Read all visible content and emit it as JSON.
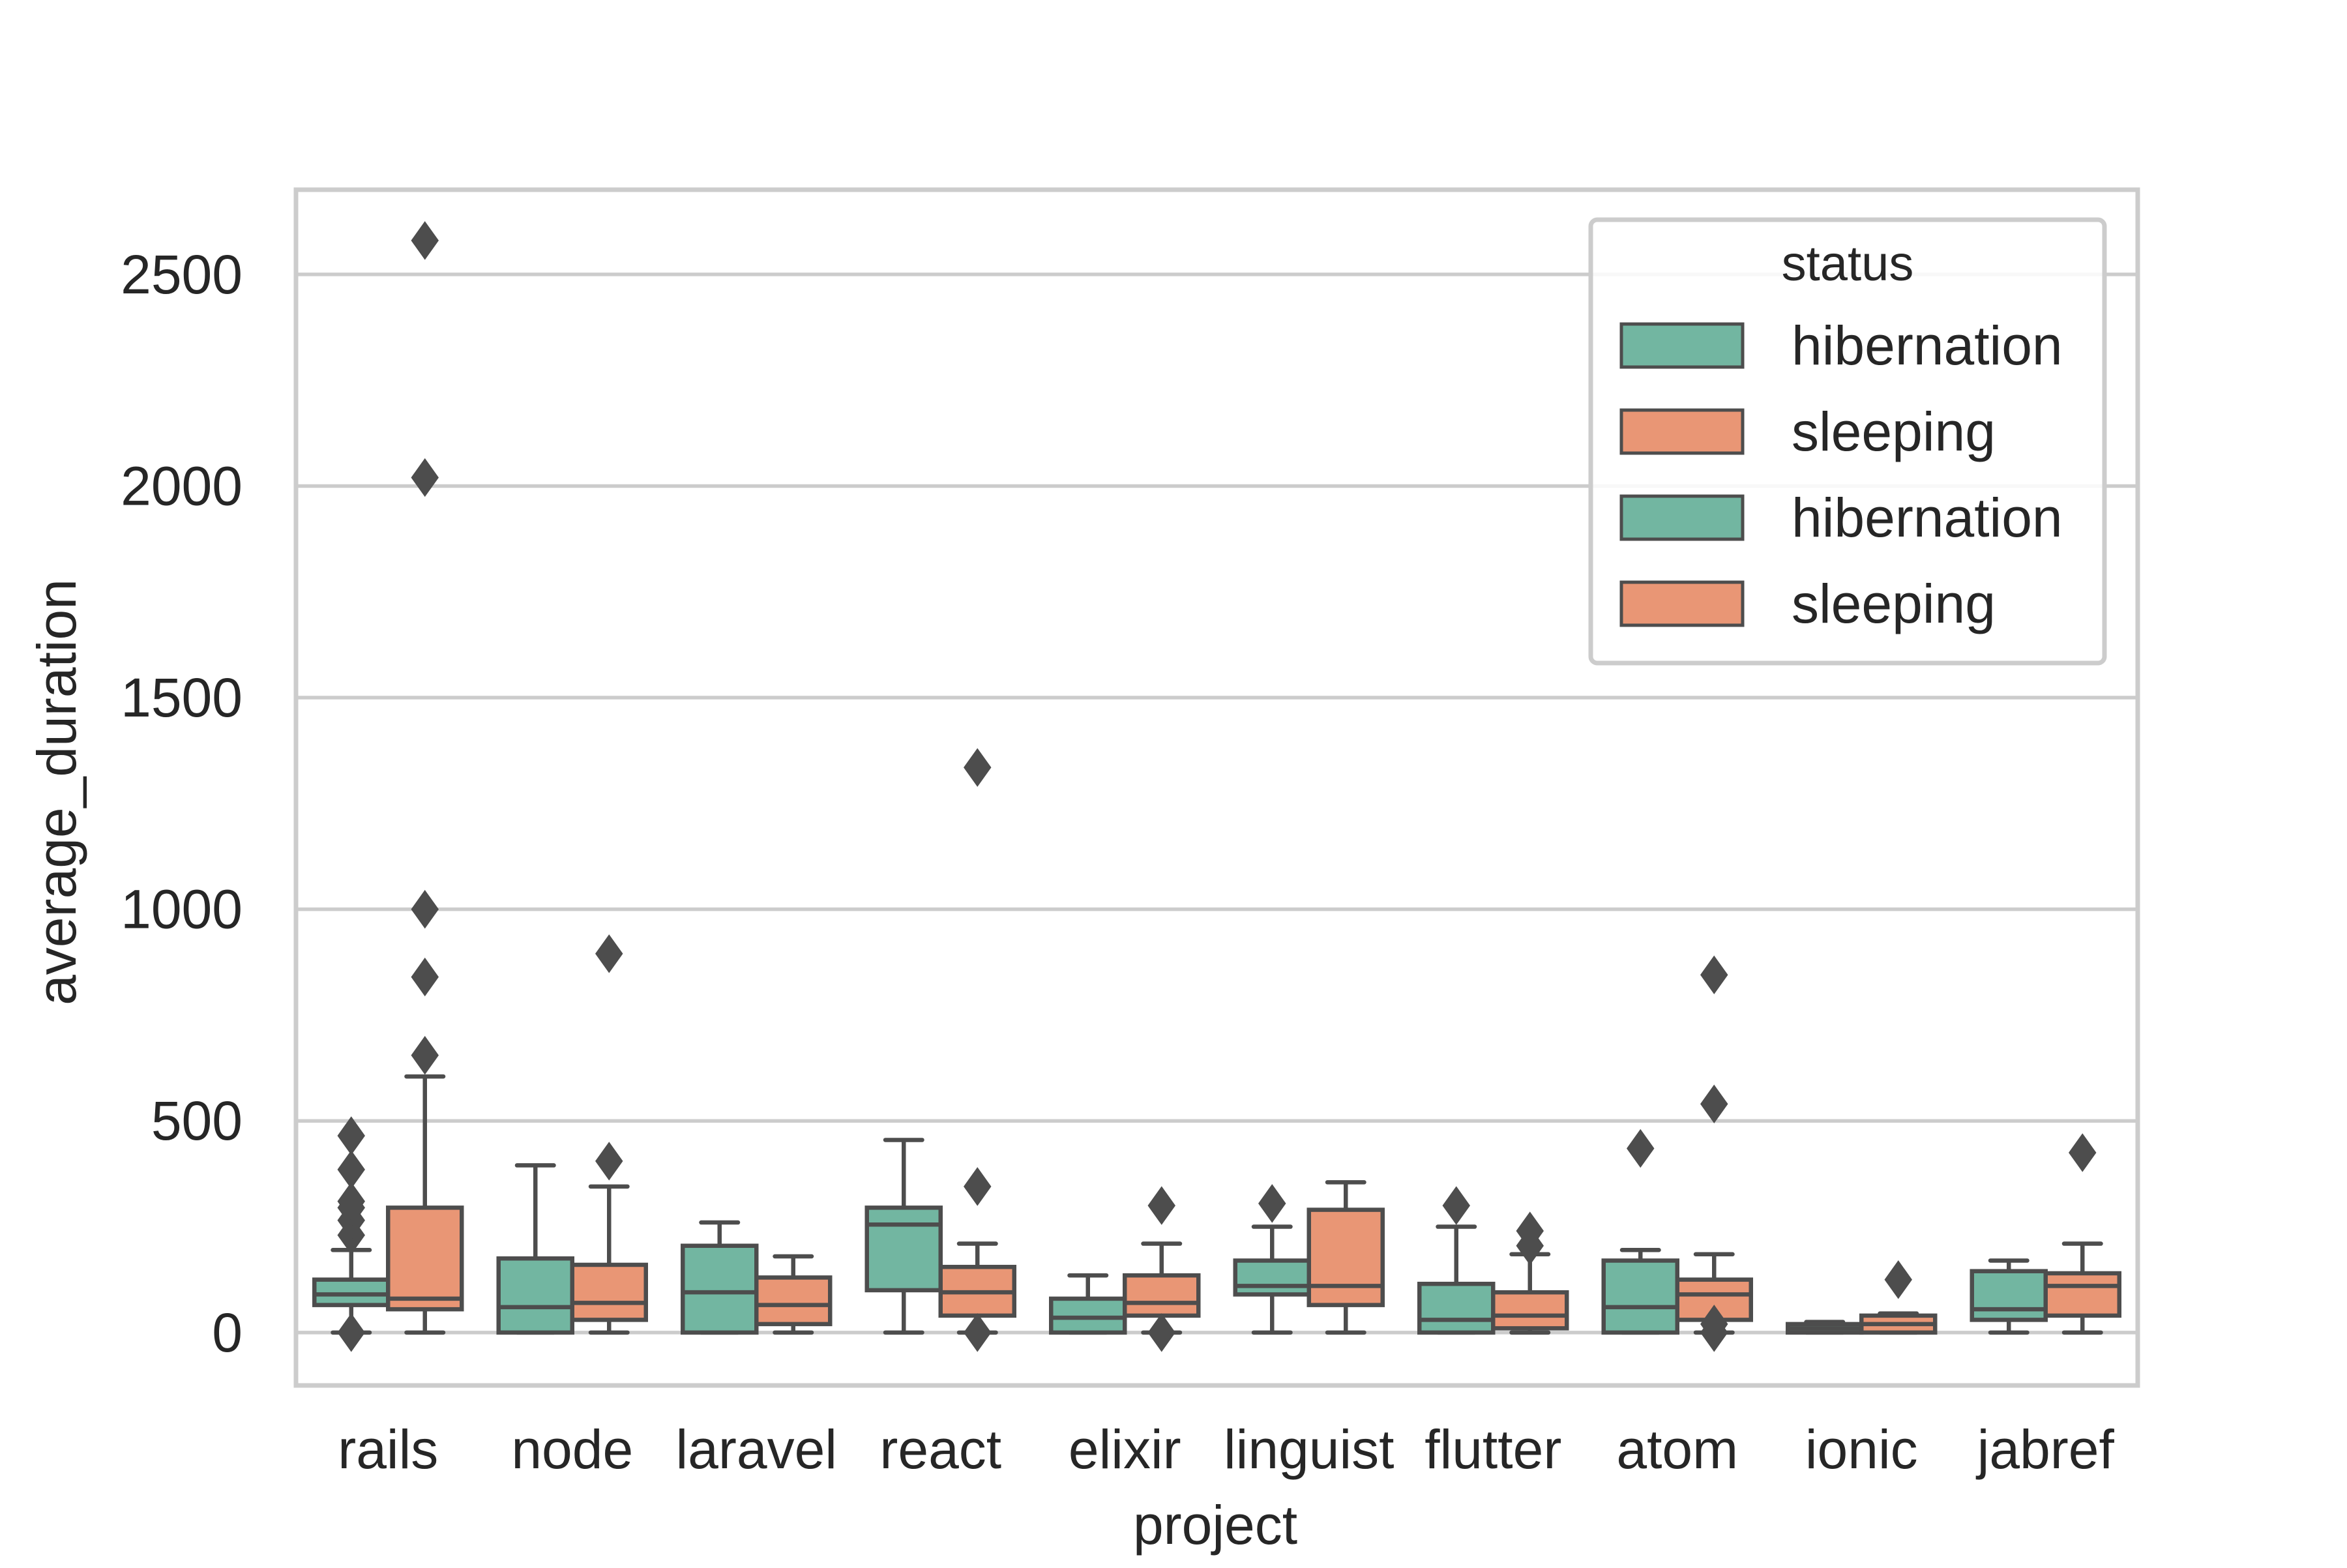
{
  "chart_data": {
    "type": "box",
    "title": "",
    "xlabel": "project",
    "ylabel": "average_duration",
    "ylim": [
      -125,
      2700
    ],
    "yticks": [
      0,
      500,
      1000,
      1500,
      2000,
      2500
    ],
    "grid": "horizontal",
    "categories": [
      "rails",
      "node",
      "laravel",
      "react",
      "elixir",
      "linguist",
      "flutter",
      "atom",
      "ionic",
      "jabref"
    ],
    "legend": {
      "title": "status",
      "placement": "top-right",
      "entries": [
        {
          "label": "hibernation",
          "color": "#72b6a1"
        },
        {
          "label": "sleeping",
          "color": "#e99675"
        },
        {
          "label": "hibernation",
          "color": "#72b6a1"
        },
        {
          "label": "sleeping",
          "color": "#e99675"
        }
      ]
    },
    "colors": {
      "hibernation": "#72b6a1",
      "sleeping": "#e99675",
      "line": "#4d4d4d",
      "grid": "#cccccc",
      "frame": "#cccccc"
    },
    "series": [
      {
        "name": "hibernation",
        "stats": [
          {
            "whislo": 0,
            "q1": 65,
            "med": 90,
            "q3": 125,
            "whishi": 195,
            "fliers": [
              0,
              230,
              265,
              295,
              310,
              385,
              465
            ]
          },
          {
            "whislo": 0,
            "q1": 0,
            "med": 60,
            "q3": 175,
            "whishi": 395,
            "fliers": []
          },
          {
            "whislo": 0,
            "q1": 0,
            "med": 95,
            "q3": 205,
            "whishi": 260,
            "fliers": []
          },
          {
            "whislo": 0,
            "q1": 100,
            "med": 255,
            "q3": 295,
            "whishi": 455,
            "fliers": []
          },
          {
            "whislo": 0,
            "q1": 0,
            "med": 35,
            "q3": 80,
            "whishi": 135,
            "fliers": []
          },
          {
            "whislo": 0,
            "q1": 90,
            "med": 110,
            "q3": 170,
            "whishi": 250,
            "fliers": [
              305
            ]
          },
          {
            "whislo": 0,
            "q1": 0,
            "med": 30,
            "q3": 115,
            "whishi": 250,
            "fliers": [
              300
            ]
          },
          {
            "whislo": 0,
            "q1": 0,
            "med": 60,
            "q3": 170,
            "whishi": 195,
            "fliers": [
              435
            ]
          },
          {
            "whislo": 0,
            "q1": 0,
            "med": 10,
            "q3": 20,
            "whishi": 25,
            "fliers": []
          },
          {
            "whislo": 0,
            "q1": 30,
            "med": 55,
            "q3": 145,
            "whishi": 170,
            "fliers": []
          }
        ]
      },
      {
        "name": "sleeping",
        "stats": [
          {
            "whislo": 0,
            "q1": 55,
            "med": 80,
            "q3": 295,
            "whishi": 605,
            "fliers": [
              655,
              840,
              1000,
              2020,
              2580
            ]
          },
          {
            "whislo": 0,
            "q1": 30,
            "med": 70,
            "q3": 160,
            "whishi": 345,
            "fliers": [
              405,
              895
            ]
          },
          {
            "whislo": 0,
            "q1": 20,
            "med": 65,
            "q3": 130,
            "whishi": 180,
            "fliers": []
          },
          {
            "whislo": 0,
            "q1": 40,
            "med": 95,
            "q3": 155,
            "whishi": 210,
            "fliers": [
              0,
              345,
              1335
            ]
          },
          {
            "whislo": 0,
            "q1": 40,
            "med": 70,
            "q3": 135,
            "whishi": 210,
            "fliers": [
              0,
              300
            ]
          },
          {
            "whislo": 0,
            "q1": 65,
            "med": 110,
            "q3": 290,
            "whishi": 355,
            "fliers": []
          },
          {
            "whislo": 0,
            "q1": 10,
            "med": 40,
            "q3": 95,
            "whishi": 185,
            "fliers": [
              205,
              240
            ]
          },
          {
            "whislo": 0,
            "q1": 30,
            "med": 90,
            "q3": 125,
            "whishi": 185,
            "fliers": [
              0,
              20,
              540,
              845
            ]
          },
          {
            "whislo": 0,
            "q1": 0,
            "med": 20,
            "q3": 40,
            "whishi": 45,
            "fliers": [
              125
            ]
          },
          {
            "whislo": 0,
            "q1": 40,
            "med": 110,
            "q3": 140,
            "whishi": 210,
            "fliers": [
              425
            ]
          }
        ]
      }
    ]
  }
}
